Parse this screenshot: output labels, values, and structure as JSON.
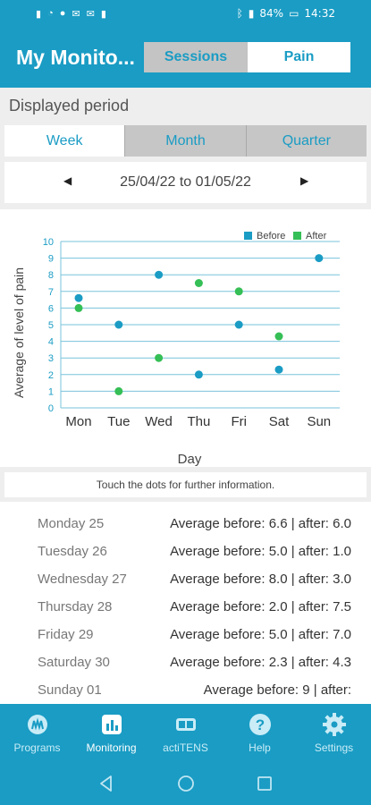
{
  "status_bar": {
    "left_icons": "sim-icon wifi-icon whatsapp-icon mail-icon shield-icon",
    "battery": "84%",
    "time": "14:32"
  },
  "app_bar": {
    "title": "My Monito...",
    "segments": [
      "Sessions",
      "Pain"
    ],
    "selected_segment": "Pain"
  },
  "period": {
    "label": "Displayed period",
    "tabs": [
      "Week",
      "Month",
      "Quarter"
    ],
    "selected_tab": "Week",
    "range": "25/04/22 to 01/05/22"
  },
  "chart_data": {
    "type": "scatter",
    "categories": [
      "Mon",
      "Tue",
      "Wed",
      "Thu",
      "Fri",
      "Sat",
      "Sun"
    ],
    "series": [
      {
        "name": "Before",
        "color": "#1a9cc4",
        "values": [
          6.6,
          5.0,
          8.0,
          2.0,
          5.0,
          2.3,
          9.0
        ]
      },
      {
        "name": "After",
        "color": "#35bf56",
        "values": [
          6.0,
          1.0,
          3.0,
          7.5,
          7.0,
          4.3,
          null
        ]
      }
    ],
    "xlabel": "Day",
    "ylabel": "Average of level of pain",
    "ylim": [
      0,
      10
    ],
    "yticks": [
      0,
      1,
      2,
      3,
      4,
      5,
      6,
      7,
      8,
      9,
      10
    ],
    "grid": true,
    "legend": "top-right"
  },
  "hint": "Touch the dots for further information.",
  "days": [
    {
      "day": "Monday 25",
      "avg": "Average before: 6.6 | after: 6.0"
    },
    {
      "day": "Tuesday 26",
      "avg": "Average before: 5.0 | after: 1.0"
    },
    {
      "day": "Wednesday 27",
      "avg": "Average before: 8.0 | after: 3.0"
    },
    {
      "day": "Thursday 28",
      "avg": "Average before: 2.0 | after: 7.5"
    },
    {
      "day": "Friday 29",
      "avg": "Average before: 5.0 | after: 7.0"
    },
    {
      "day": "Saturday 30",
      "avg": "Average before: 2.3 | after: 4.3"
    },
    {
      "day": "Sunday 01",
      "avg": "Average before: 9 | after:"
    }
  ],
  "bottom_nav": [
    {
      "label": "Programs",
      "icon": "programs-icon"
    },
    {
      "label": "Monitoring",
      "icon": "bar-chart-icon"
    },
    {
      "label": "actiTENS",
      "icon": "device-icon"
    },
    {
      "label": "Help",
      "icon": "help-icon"
    },
    {
      "label": "Settings",
      "icon": "gear-icon"
    }
  ],
  "active_nav": "Monitoring"
}
